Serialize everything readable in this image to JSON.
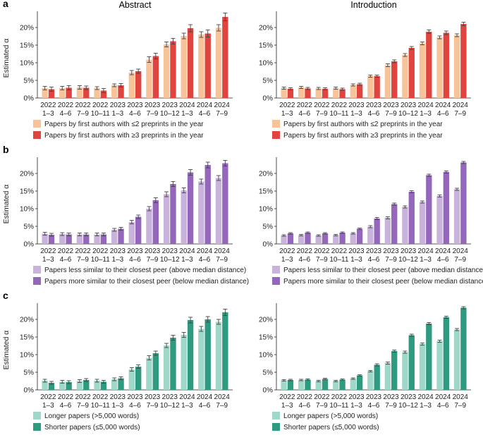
{
  "colors": {
    "orange_light": "#f7c49a",
    "red": "#e0443e",
    "purple_light": "#c9b3dc",
    "purple_dark": "#9467bd",
    "teal_light": "#9fd8c9",
    "teal_dark": "#2e9b80",
    "axis": "#222222",
    "errorbar": "#444444"
  },
  "panels": [
    {
      "letter": "a"
    },
    {
      "letter": "b"
    },
    {
      "letter": "c"
    }
  ],
  "column_titles": [
    "Abstract",
    "Introduction"
  ],
  "legends": [
    [
      "Papers by first authors with ≤2 preprints in the year",
      "Papers by first authors with ≥3 preprints in the year"
    ],
    [
      "Papers less similar to their closest peer (above median distance)",
      "Papers more similar to their closest peer (below median distance)"
    ],
    [
      "Longer papers (>5,000 words)",
      "Shorter papers (≤5,000 words)"
    ]
  ],
  "chart_data": [
    {
      "id": "a-abstract",
      "panel": "a",
      "title": "Abstract",
      "type": "bar",
      "ylabel": "Estimated α",
      "ylim": [
        0,
        25
      ],
      "yticks": [
        "0%",
        "5%",
        "10%",
        "15%",
        "20%"
      ],
      "categories": [
        [
          "2022",
          "1–3"
        ],
        [
          "2022",
          "4–6"
        ],
        [
          "2022",
          "7–9"
        ],
        [
          "2022",
          "10–11"
        ],
        [
          "2023",
          "1–3"
        ],
        [
          "2023",
          "4–6"
        ],
        [
          "2023",
          "7–9"
        ],
        [
          "2023",
          "10–12"
        ],
        [
          "2024",
          "1–3"
        ],
        [
          "2024",
          "4–6"
        ],
        [
          "2024",
          "7–9"
        ]
      ],
      "series": [
        {
          "name": "Papers by first authors with ≤2 preprints in the year",
          "color": "#f7c49a",
          "values": [
            2.8,
            2.8,
            3.0,
            2.8,
            3.6,
            7.2,
            10.9,
            15.2,
            17.6,
            18.0,
            19.9
          ],
          "errors": [
            0.5,
            0.5,
            0.5,
            0.4,
            0.4,
            0.6,
            0.8,
            0.7,
            0.8,
            0.8,
            0.9
          ]
        },
        {
          "name": "Papers by first authors with ≥3 preprints in the year",
          "color": "#e0443e",
          "values": [
            2.5,
            2.9,
            2.9,
            2.1,
            3.6,
            7.6,
            11.9,
            16.1,
            19.8,
            18.3,
            23.0
          ],
          "errors": [
            0.6,
            0.6,
            0.5,
            0.6,
            0.5,
            0.6,
            0.8,
            0.8,
            1.0,
            1.0,
            1.1
          ]
        }
      ]
    },
    {
      "id": "a-intro",
      "panel": "a",
      "title": "Introduction",
      "type": "bar",
      "ylabel": "",
      "ylim": [
        0,
        25
      ],
      "yticks": [
        "0%",
        "5%",
        "10%",
        "15%",
        "20%"
      ],
      "categories": [
        [
          "2022",
          "1–3"
        ],
        [
          "2022",
          "4–6"
        ],
        [
          "2022",
          "7–9"
        ],
        [
          "2022",
          "10–11"
        ],
        [
          "2023",
          "1–3"
        ],
        [
          "2023",
          "4–6"
        ],
        [
          "2023",
          "7–9"
        ],
        [
          "2023",
          "10–12"
        ],
        [
          "2024",
          "1–3"
        ],
        [
          "2024",
          "4–6"
        ],
        [
          "2024",
          "7–9"
        ]
      ],
      "series": [
        {
          "name": "Papers by first authors with ≤2 preprints in the year",
          "color": "#f7c49a",
          "values": [
            2.8,
            3.0,
            2.7,
            2.8,
            3.7,
            6.2,
            9.3,
            12.2,
            15.5,
            17.2,
            17.8
          ],
          "errors": [
            0.3,
            0.3,
            0.3,
            0.3,
            0.3,
            0.3,
            0.4,
            0.4,
            0.4,
            0.4,
            0.4
          ]
        },
        {
          "name": "Papers by first authors with ≥3 preprints in the year",
          "color": "#e0443e",
          "values": [
            2.6,
            2.7,
            2.6,
            2.5,
            3.9,
            6.2,
            10.4,
            14.2,
            18.8,
            18.5,
            21.0
          ],
          "errors": [
            0.3,
            0.3,
            0.3,
            0.3,
            0.3,
            0.3,
            0.4,
            0.4,
            0.5,
            0.5,
            0.5
          ]
        }
      ]
    },
    {
      "id": "b-abstract",
      "panel": "b",
      "title": "",
      "type": "bar",
      "ylabel": "Estimated α",
      "ylim": [
        0,
        25
      ],
      "yticks": [
        "0%",
        "5%",
        "10%",
        "15%",
        "20%"
      ],
      "categories": [
        [
          "2022",
          "1–3"
        ],
        [
          "2022",
          "4–6"
        ],
        [
          "2022",
          "7–9"
        ],
        [
          "2022",
          "10–11"
        ],
        [
          "2023",
          "1–3"
        ],
        [
          "2023",
          "4–6"
        ],
        [
          "2023",
          "7–9"
        ],
        [
          "2023",
          "10–12"
        ],
        [
          "2024",
          "1–3"
        ],
        [
          "2024",
          "4–6"
        ],
        [
          "2024",
          "7–9"
        ]
      ],
      "series": [
        {
          "name": "Papers less similar to their closest peer (above median distance)",
          "color": "#c9b3dc",
          "values": [
            2.9,
            2.8,
            2.7,
            2.7,
            4.0,
            6.2,
            10.0,
            14.1,
            15.2,
            17.7,
            18.7
          ],
          "errors": [
            0.4,
            0.4,
            0.4,
            0.4,
            0.4,
            0.5,
            0.6,
            0.7,
            0.7,
            0.7,
            0.7
          ]
        },
        {
          "name": "Papers more similar to their closest peer (below median distance)",
          "color": "#9467bd",
          "values": [
            2.6,
            2.7,
            2.7,
            2.7,
            4.3,
            7.7,
            12.4,
            17.0,
            20.3,
            22.4,
            22.9
          ],
          "errors": [
            0.4,
            0.4,
            0.4,
            0.4,
            0.4,
            0.5,
            0.7,
            0.7,
            0.8,
            0.8,
            0.8
          ]
        }
      ]
    },
    {
      "id": "b-intro",
      "panel": "b",
      "title": "",
      "type": "bar",
      "ylabel": "",
      "ylim": [
        0,
        25
      ],
      "yticks": [
        "0%",
        "5%",
        "10%",
        "15%",
        "20%"
      ],
      "categories": [
        [
          "2022",
          "1–3"
        ],
        [
          "2022",
          "4–6"
        ],
        [
          "2022",
          "7–9"
        ],
        [
          "2022",
          "10–11"
        ],
        [
          "2023",
          "1–3"
        ],
        [
          "2023",
          "4–6"
        ],
        [
          "2023",
          "7–9"
        ],
        [
          "2023",
          "10–12"
        ],
        [
          "2024",
          "1–3"
        ],
        [
          "2024",
          "4–6"
        ],
        [
          "2024",
          "7–9"
        ]
      ],
      "series": [
        {
          "name": "Papers less similar to their closest peer (above median distance)",
          "color": "#c9b3dc",
          "values": [
            2.4,
            2.5,
            2.4,
            2.5,
            3.0,
            4.9,
            7.4,
            10.5,
            11.9,
            13.6,
            15.5
          ],
          "errors": [
            0.2,
            0.2,
            0.2,
            0.2,
            0.2,
            0.3,
            0.3,
            0.3,
            0.3,
            0.3,
            0.3
          ]
        },
        {
          "name": "Papers more similar to their closest peer (below median distance)",
          "color": "#9467bd",
          "values": [
            3.0,
            3.2,
            3.0,
            3.2,
            4.3,
            7.2,
            11.3,
            14.8,
            19.5,
            20.4,
            23.1
          ],
          "errors": [
            0.2,
            0.2,
            0.2,
            0.2,
            0.2,
            0.3,
            0.3,
            0.3,
            0.3,
            0.3,
            0.3
          ]
        }
      ]
    },
    {
      "id": "c-abstract",
      "panel": "c",
      "title": "",
      "type": "bar",
      "ylabel": "Estimated α",
      "ylim": [
        0,
        25
      ],
      "yticks": [
        "0%",
        "5%",
        "10%",
        "15%",
        "20%"
      ],
      "categories": [
        [
          "2022",
          "1–3"
        ],
        [
          "2022",
          "4–6"
        ],
        [
          "2022",
          "7–9"
        ],
        [
          "2022",
          "10–11"
        ],
        [
          "2023",
          "1–3"
        ],
        [
          "2023",
          "4–6"
        ],
        [
          "2023",
          "7–9"
        ],
        [
          "2023",
          "10–12"
        ],
        [
          "2024",
          "1–3"
        ],
        [
          "2024",
          "4–6"
        ],
        [
          "2024",
          "7–9"
        ]
      ],
      "series": [
        {
          "name": "Longer papers (>5,000 words)",
          "color": "#9fd8c9",
          "values": [
            2.6,
            2.3,
            2.5,
            2.6,
            3.0,
            5.8,
            9.1,
            12.6,
            15.6,
            17.3,
            19.3
          ],
          "errors": [
            0.4,
            0.4,
            0.4,
            0.4,
            0.4,
            0.5,
            0.6,
            0.6,
            0.7,
            0.7,
            0.7
          ]
        },
        {
          "name": "Shorter papers (≤5,000 words)",
          "color": "#2e9b80",
          "values": [
            2.0,
            2.2,
            2.8,
            2.3,
            3.3,
            6.6,
            10.4,
            14.8,
            19.8,
            20.0,
            22.0
          ],
          "errors": [
            0.4,
            0.4,
            0.4,
            0.4,
            0.4,
            0.5,
            0.6,
            0.7,
            0.8,
            0.8,
            0.9
          ]
        }
      ]
    },
    {
      "id": "c-intro",
      "panel": "c",
      "title": "",
      "type": "bar",
      "ylabel": "",
      "ylim": [
        0,
        25
      ],
      "yticks": [
        "0%",
        "5%",
        "10%",
        "15%",
        "20%"
      ],
      "categories": [
        [
          "2022",
          "1–3"
        ],
        [
          "2022",
          "4–6"
        ],
        [
          "2022",
          "7–9"
        ],
        [
          "2022",
          "10–11"
        ],
        [
          "2023",
          "1–3"
        ],
        [
          "2023",
          "4–6"
        ],
        [
          "2023",
          "7–9"
        ],
        [
          "2023",
          "10–12"
        ],
        [
          "2024",
          "1–3"
        ],
        [
          "2024",
          "4–6"
        ],
        [
          "2024",
          "7–9"
        ]
      ],
      "series": [
        {
          "name": "Longer papers (>5,000 words)",
          "color": "#9fd8c9",
          "values": [
            2.7,
            2.8,
            2.5,
            2.5,
            3.2,
            5.3,
            7.6,
            10.7,
            13.0,
            13.8,
            17.1
          ],
          "errors": [
            0.2,
            0.2,
            0.2,
            0.2,
            0.2,
            0.2,
            0.3,
            0.3,
            0.3,
            0.3,
            0.3
          ]
        },
        {
          "name": "Shorter papers (≤5,000 words)",
          "color": "#2e9b80",
          "values": [
            2.8,
            2.9,
            3.1,
            2.9,
            4.1,
            7.1,
            11.0,
            15.5,
            18.8,
            20.6,
            23.3
          ],
          "errors": [
            0.2,
            0.2,
            0.2,
            0.2,
            0.2,
            0.3,
            0.3,
            0.3,
            0.3,
            0.3,
            0.3
          ]
        }
      ]
    }
  ]
}
